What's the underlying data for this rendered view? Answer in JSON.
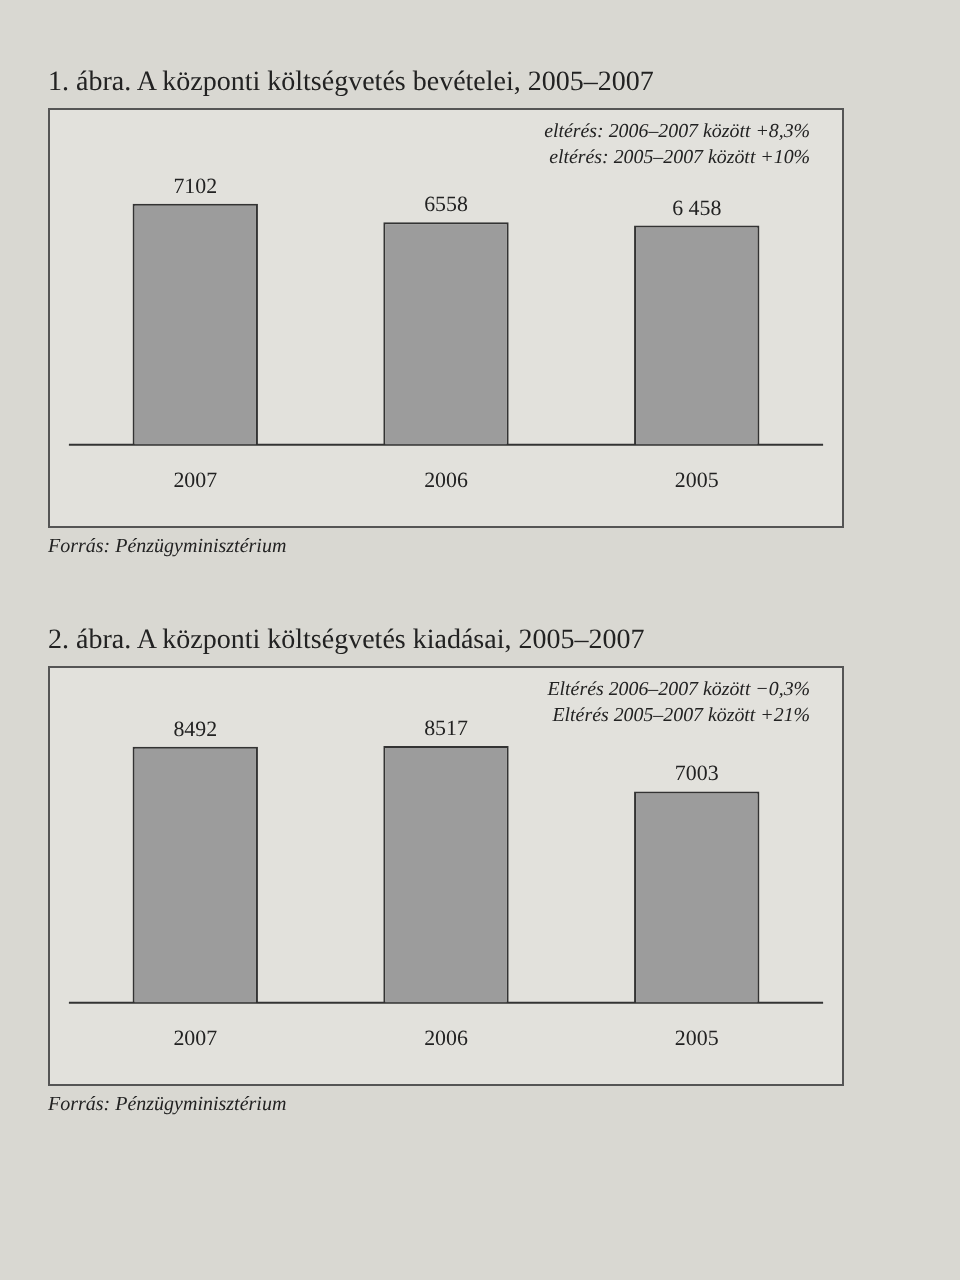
{
  "chart_data": [
    {
      "type": "bar",
      "title": "1. ábra. A központi költségvetés bevételei, 2005–2007",
      "categories": [
        "2007",
        "2006",
        "2005"
      ],
      "values": [
        7102,
        6558,
        6458
      ],
      "value_labels": [
        "7102",
        "6558",
        "6 458"
      ],
      "color": "#9c9c9c",
      "tick_labels": "x",
      "grid": false,
      "legend": false,
      "annotations": [
        "eltérés: 2006–2007 között +8,3%",
        "eltérés: 2005–2007 között +10%",
        "Forrás: Pénzügyminisztérium"
      ]
    },
    {
      "type": "bar",
      "title": "2. ábra. A központi költségvetés kiadásai, 2005–2007",
      "categories": [
        "2007",
        "2006",
        "2005"
      ],
      "values": [
        8492,
        8517,
        7003
      ],
      "data_labels": true,
      "color": "#9c9c9c",
      "tick_labels": "x",
      "grid": false,
      "legend": false,
      "annotations": [
        "Eltérés 2006–2007 között −0,3%",
        "Eltérés 2005–2007 között +21%",
        "Forrás: Pénzügyminisztérium"
      ]
    }
  ]
}
